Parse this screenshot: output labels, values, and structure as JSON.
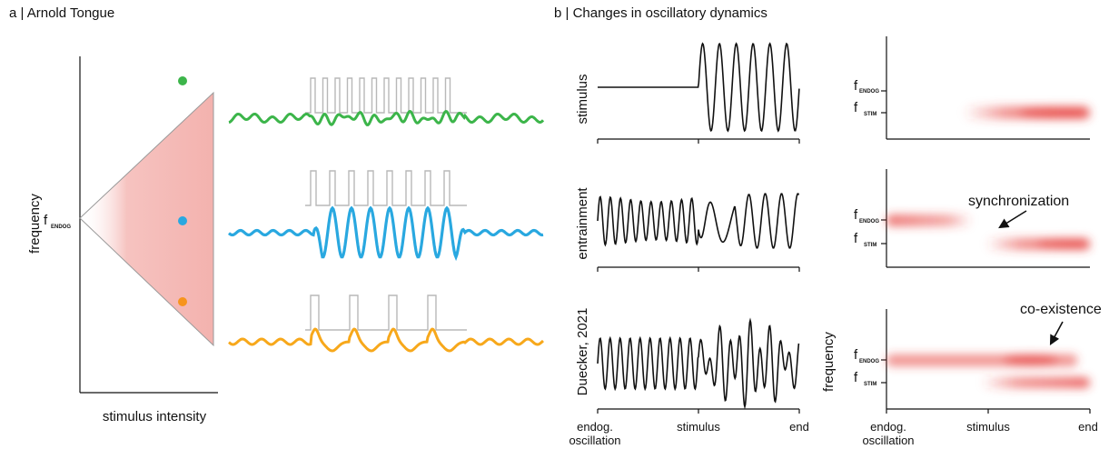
{
  "panel_a": {
    "title": "a | Arnold Tongue",
    "ylabel": "frequency",
    "xlabel": "stimulus intensity",
    "f_main": "f",
    "f_sub": "ENDOG",
    "dot_colors": {
      "green": "#3cb54a",
      "blue": "#29a8e0",
      "orange": "#f7941d"
    },
    "tongue_color": "#f4a6a3"
  },
  "panel_b": {
    "title": "b | Changes in oscillatory dynamics",
    "rows": [
      {
        "label": "stimulus"
      },
      {
        "label": "entrainment"
      },
      {
        "label": "Duecker, 2021"
      }
    ],
    "x_ticks": [
      "endog.",
      "oscillation",
      "stimulus",
      "end"
    ],
    "spec_ylabel": "frequency",
    "f_endog_main": "f",
    "f_endog_sub": "ENDOG",
    "f_stim_main": "f",
    "f_stim_sub": "STIM",
    "annotation_sync": "synchronization",
    "annotation_coex": "co-existence",
    "power_color": "#e53935"
  }
}
